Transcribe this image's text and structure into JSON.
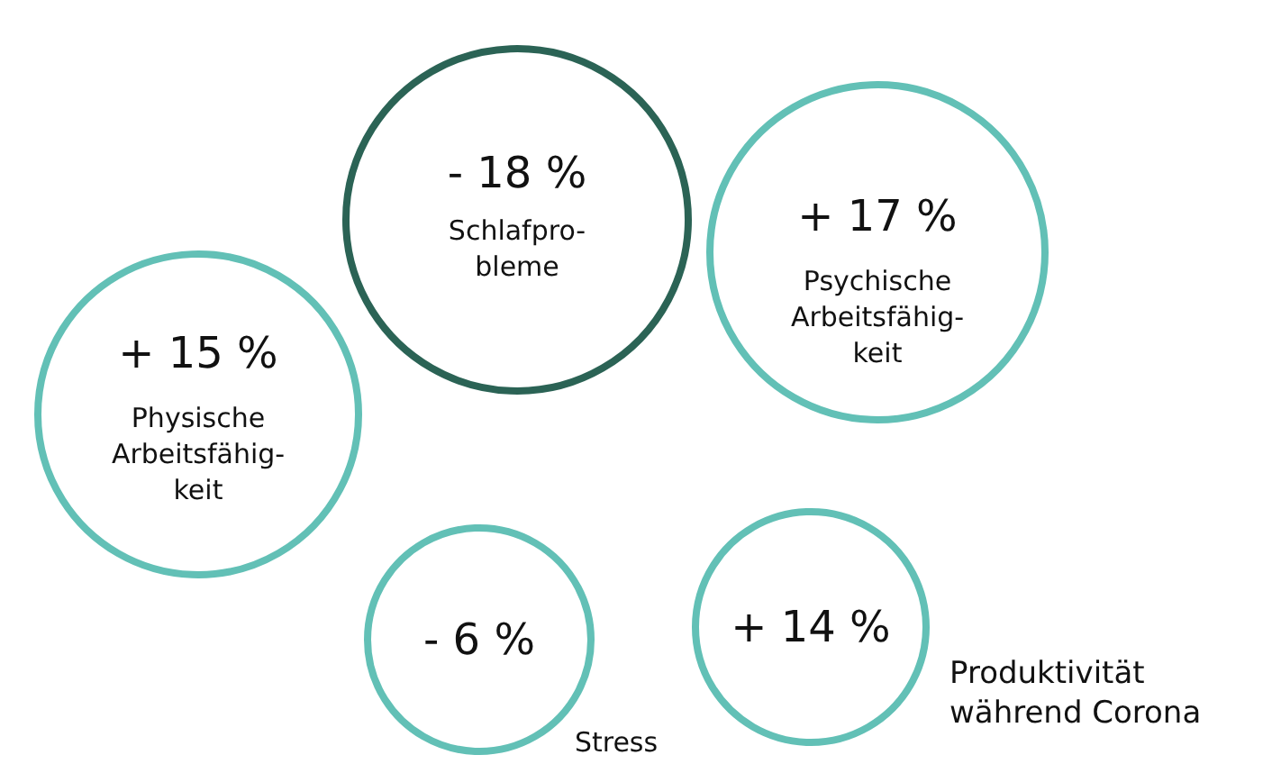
{
  "chart_data": {
    "type": "other",
    "categories": [
      "Schlafpro-\nbleme",
      "Psychische\nArbeitsfähig-\nkeit",
      "Physische\nArbeitsfähig-\nkeit",
      "Stress",
      "Produktivität\nwährend Corona"
    ],
    "values": [
      -18,
      17,
      15,
      -6,
      14
    ],
    "value_labels": [
      "- 18 %",
      "+ 17 %",
      "+ 15 %",
      "- 6 %",
      "+ 14 %"
    ],
    "colors": [
      "#2b6355",
      "#62c0b6",
      "#62c0b6",
      "#62c0b6",
      "#62c0b6"
    ]
  }
}
